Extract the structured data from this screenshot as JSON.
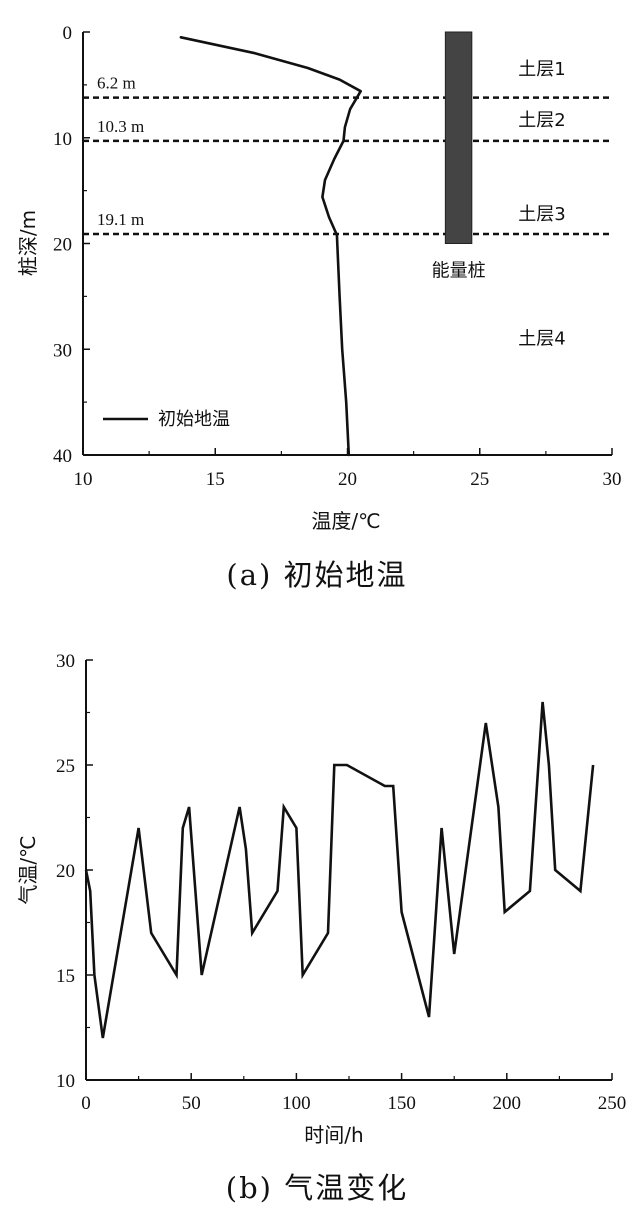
{
  "chart_data": [
    {
      "type": "line",
      "caption": "(a) 初始地温",
      "xlabel": "温度/℃",
      "ylabel": "桩深/m",
      "xlim": [
        10,
        30
      ],
      "ylim": [
        0,
        40
      ],
      "y_inverted": true,
      "x_ticks": [
        "10",
        "15",
        "20",
        "25",
        "30"
      ],
      "y_ticks": [
        "0",
        "10",
        "20",
        "30",
        "40"
      ],
      "legend": {
        "position": "bottom-left",
        "entries": [
          "初始地温"
        ]
      },
      "series": [
        {
          "name": "初始地温",
          "points": [
            [
              13.7,
              0.5
            ],
            [
              16.5,
              2.0
            ],
            [
              18.5,
              3.4
            ],
            [
              19.7,
              4.5
            ],
            [
              20.5,
              5.6
            ],
            [
              20.1,
              7.3
            ],
            [
              19.9,
              9.0
            ],
            [
              19.85,
              10.3
            ],
            [
              19.5,
              12.0
            ],
            [
              19.15,
              14.0
            ],
            [
              19.05,
              15.6
            ],
            [
              19.3,
              17.5
            ],
            [
              19.6,
              19.2
            ],
            [
              19.7,
              25.0
            ],
            [
              19.8,
              30.0
            ],
            [
              19.95,
              35.0
            ],
            [
              20.05,
              40.0
            ]
          ]
        }
      ],
      "layer_boundaries": [
        {
          "depth": 6.2,
          "label": "6.2 m"
        },
        {
          "depth": 10.3,
          "label": "10.3 m"
        },
        {
          "depth": 19.1,
          "label": "19.1 m"
        }
      ],
      "layer_labels": [
        {
          "text": "土层1",
          "depth": 3.5
        },
        {
          "text": "土层2",
          "depth": 8.3
        },
        {
          "text": "土层3",
          "depth": 17.2
        },
        {
          "text": "土层4",
          "depth": 29.0
        }
      ],
      "pile": {
        "label": "能量桩",
        "x_from": 23.7,
        "x_to": 24.7,
        "depth_from": 0,
        "depth_to": 20,
        "color": "#444444"
      }
    },
    {
      "type": "line",
      "caption": "(b) 气温变化",
      "xlabel": "时间/h",
      "ylabel": "气温/℃",
      "xlim": [
        0,
        250
      ],
      "ylim": [
        10,
        30
      ],
      "x_ticks": [
        "0",
        "50",
        "100",
        "150",
        "200",
        "250"
      ],
      "y_ticks": [
        "10",
        "15",
        "20",
        "25",
        "30"
      ],
      "series": [
        {
          "name": "",
          "points": [
            [
              0,
              20
            ],
            [
              2,
              19
            ],
            [
              4,
              15
            ],
            [
              8,
              12
            ],
            [
              25,
              22
            ],
            [
              31,
              17
            ],
            [
              43,
              15
            ],
            [
              46,
              22
            ],
            [
              49,
              23
            ],
            [
              55,
              15
            ],
            [
              73,
              23
            ],
            [
              76,
              21
            ],
            [
              79,
              17
            ],
            [
              91,
              19
            ],
            [
              94,
              23
            ],
            [
              100,
              22
            ],
            [
              103,
              15
            ],
            [
              115,
              17
            ],
            [
              118,
              25
            ],
            [
              124,
              25
            ],
            [
              142,
              24
            ],
            [
              146,
              24
            ],
            [
              150,
              18
            ],
            [
              163,
              13
            ],
            [
              169,
              22
            ],
            [
              175,
              16
            ],
            [
              190,
              27
            ],
            [
              196,
              23
            ],
            [
              199,
              18
            ],
            [
              211,
              19
            ],
            [
              217,
              28
            ],
            [
              220,
              25
            ],
            [
              223,
              20
            ],
            [
              235,
              19
            ],
            [
              241,
              25
            ]
          ]
        }
      ]
    }
  ]
}
